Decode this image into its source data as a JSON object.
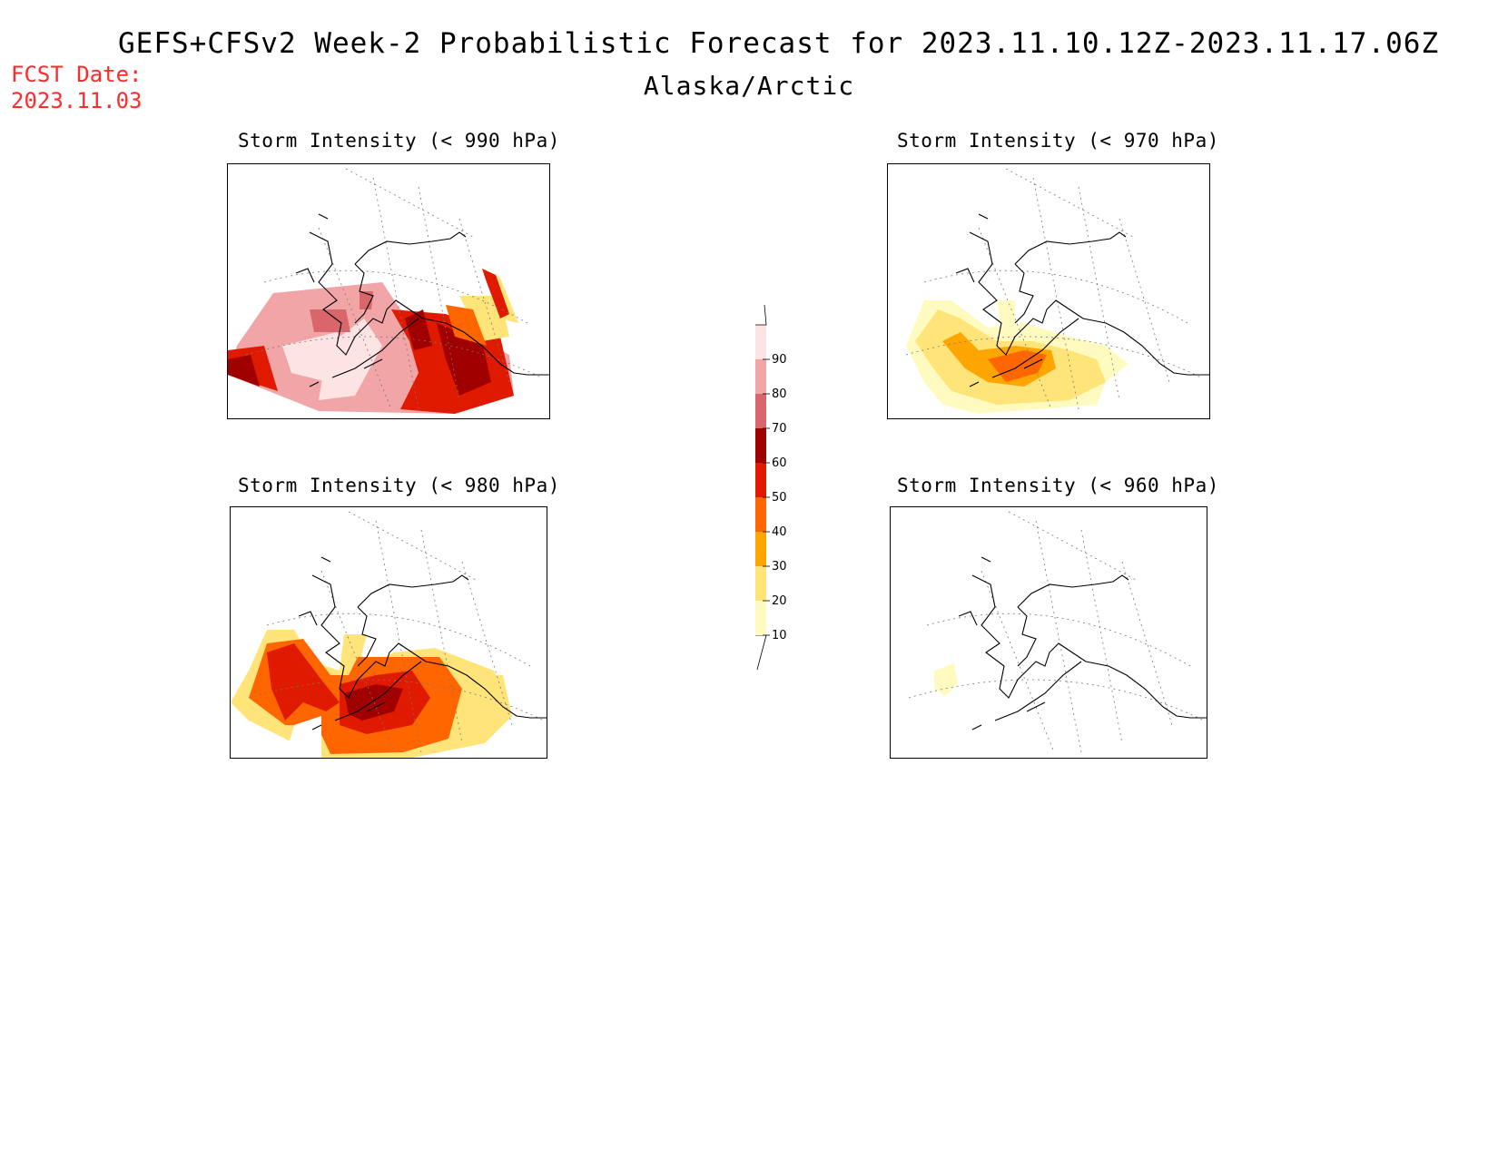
{
  "header": {
    "title": "GEFS+CFSv2 Week-2 Probabilistic Forecast for 2023.11.10.12Z-2023.11.17.06Z",
    "region": "Alaska/Arctic",
    "fcst_label": "FCST Date:",
    "fcst_date": "2023.11.03"
  },
  "panels": [
    {
      "title": "Storm Intensity (< 990 hPa)"
    },
    {
      "title": "Storm Intensity (< 970 hPa)"
    },
    {
      "title": "Storm Intensity (< 980 hPa)"
    },
    {
      "title": "Storm Intensity (< 960 hPa)"
    }
  ],
  "colorbar": {
    "levels": [
      "10",
      "20",
      "30",
      "40",
      "50",
      "60",
      "70",
      "80",
      "90"
    ],
    "colors": [
      "#fffbc0",
      "#ffe47a",
      "#ffa500",
      "#ff6600",
      "#e01a00",
      "#a00000",
      "#d9666a",
      "#f2a5a7",
      "#fde4e4"
    ]
  }
}
